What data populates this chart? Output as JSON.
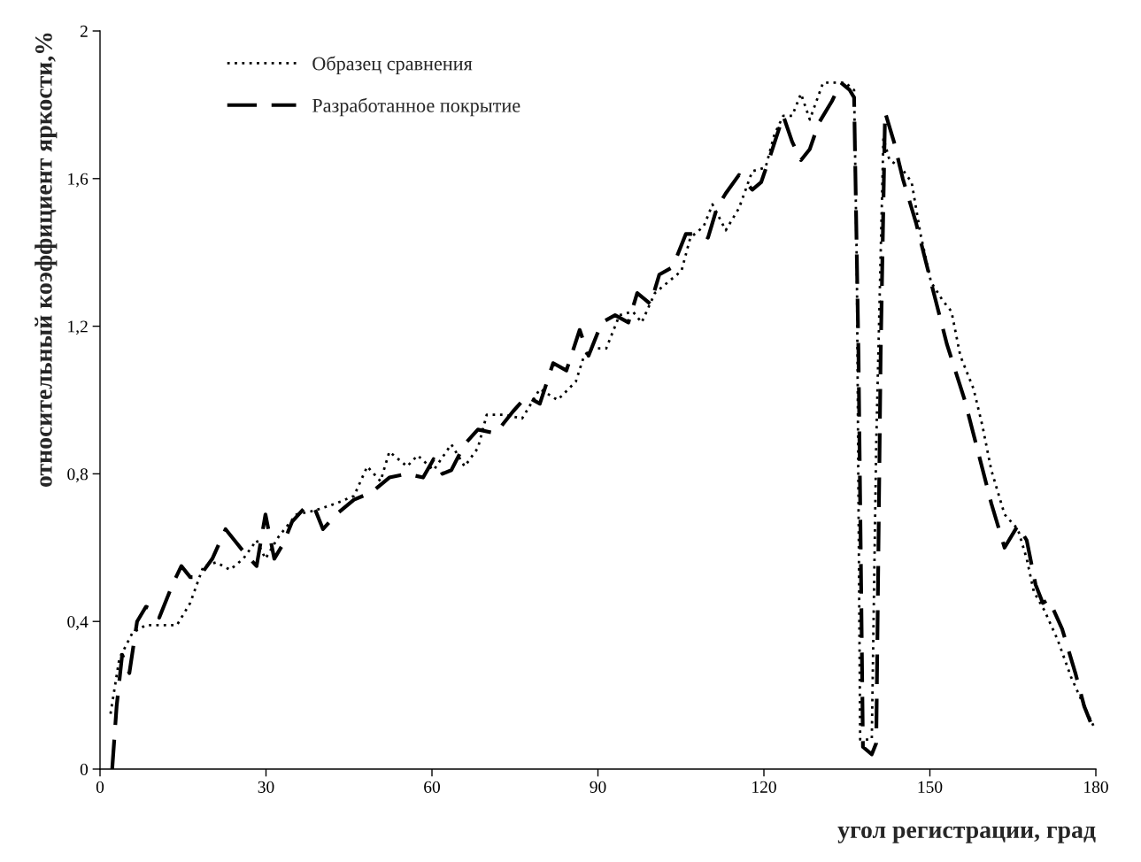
{
  "chart_data": {
    "type": "line",
    "xlabel": "угол регистрации, град",
    "ylabel": "относительный коэффициент яркости,%",
    "xlim": [
      0,
      180
    ],
    "xticks": [
      0,
      30,
      60,
      90,
      120,
      150,
      180
    ],
    "ylim": [
      0,
      2
    ],
    "yticks": [
      0,
      {
        "value": 0.4,
        "label": "0,4"
      },
      {
        "value": 0.8,
        "label": "0,8"
      },
      {
        "value": 1.2,
        "label": "1,2"
      },
      {
        "value": 1.6,
        "label": "1,6"
      },
      2
    ],
    "grid": false,
    "legend": "top left",
    "marker": "none",
    "series": [
      {
        "name": "Образец сравнения",
        "color": "#000000",
        "line_style": "dotted",
        "x": [
          1.9,
          3.5,
          5.9,
          8.3,
          10.7,
          13.9,
          16.3,
          18.7,
          21,
          23.5,
          25.9,
          28.3,
          29.9,
          32.3,
          35.5,
          38.7,
          42.7,
          45.9,
          48.3,
          50.7,
          52.3,
          55.5,
          57.4,
          60.3,
          63.5,
          65.9,
          68.3,
          69.9,
          73.1,
          76.3,
          79.5,
          82.7,
          86,
          87.5,
          89,
          91.5,
          93.9,
          96.3,
          97.9,
          100.3,
          102.7,
          105.1,
          106.7,
          109.1,
          110.7,
          113.1,
          115.5,
          117.9,
          120.3,
          121.9,
          123.5,
          125.1,
          126.7,
          128.3,
          130.7,
          133.1,
          134.7,
          136.3,
          136.8,
          137.4,
          139.5,
          140.3,
          141.6,
          142.7,
          144.8,
          146.7,
          148.3,
          150.2,
          152.3,
          153.9,
          155.5,
          157.9,
          159.5,
          161.1,
          163.5,
          165.9,
          167.5,
          168.8,
          170.7,
          173.1,
          175.5,
          177.9,
          179.8
        ],
        "values": [
          0.15,
          0.3,
          0.37,
          0.39,
          0.39,
          0.39,
          0.45,
          0.55,
          0.56,
          0.54,
          0.57,
          0.62,
          0.57,
          0.63,
          0.69,
          0.7,
          0.72,
          0.74,
          0.82,
          0.78,
          0.86,
          0.82,
          0.85,
          0.81,
          0.88,
          0.82,
          0.87,
          0.96,
          0.96,
          0.95,
          1.03,
          1.0,
          1.05,
          1.12,
          1.14,
          1.14,
          1.23,
          1.24,
          1.21,
          1.29,
          1.32,
          1.35,
          1.44,
          1.47,
          1.53,
          1.46,
          1.52,
          1.62,
          1.63,
          1.72,
          1.77,
          1.77,
          1.83,
          1.76,
          1.86,
          1.86,
          1.86,
          1.84,
          1.36,
          0.08,
          0.08,
          0.88,
          1.71,
          1.65,
          1.63,
          1.59,
          1.45,
          1.32,
          1.27,
          1.24,
          1.12,
          1.03,
          0.93,
          0.81,
          0.69,
          0.65,
          0.57,
          0.48,
          0.43,
          0.35,
          0.25,
          0.17,
          0.11
        ]
      },
      {
        "name": "Разработанное покрытие",
        "color": "#000000",
        "line_style": "dashed",
        "x": [
          2.2,
          3,
          4,
          5.3,
          6.7,
          8.3,
          9.9,
          10.7,
          13.1,
          14.7,
          16.3,
          17.9,
          20.3,
          22.7,
          24.3,
          25.9,
          28.3,
          29.9,
          31.5,
          33.1,
          34.7,
          37.1,
          38.7,
          40.3,
          42.7,
          45.9,
          49.1,
          52.3,
          55.5,
          58.4,
          60.3,
          61.9,
          63.5,
          65.9,
          68.3,
          71.5,
          74.7,
          77.1,
          79.5,
          81.9,
          84.3,
          86.7,
          88.3,
          90.7,
          93.1,
          95.5,
          97.1,
          99.5,
          101.1,
          103.5,
          105.9,
          108.3,
          109.9,
          111.5,
          113.1,
          115.5,
          117.9,
          119.5,
          121.1,
          123.5,
          125.1,
          126.7,
          128.3,
          129.9,
          132.3,
          133.9,
          135.5,
          136.3,
          137.1,
          137.9,
          139.5,
          140.3,
          141.1,
          141.9,
          143.5,
          145.1,
          147.5,
          150.7,
          153.1,
          156.3,
          158.7,
          161.1,
          163.5,
          165.9,
          167.5,
          169.1,
          170.4,
          171.5,
          173.9,
          176.3,
          177.9,
          179.5
        ],
        "values": [
          0.0,
          0.17,
          0.31,
          0.26,
          0.4,
          0.44,
          0.43,
          0.41,
          0.5,
          0.55,
          0.52,
          0.52,
          0.57,
          0.65,
          0.62,
          0.59,
          0.55,
          0.69,
          0.57,
          0.61,
          0.67,
          0.71,
          0.71,
          0.65,
          0.69,
          0.73,
          0.75,
          0.79,
          0.8,
          0.79,
          0.84,
          0.8,
          0.81,
          0.88,
          0.92,
          0.91,
          0.97,
          1.01,
          0.99,
          1.1,
          1.08,
          1.19,
          1.12,
          1.21,
          1.23,
          1.21,
          1.29,
          1.26,
          1.34,
          1.36,
          1.45,
          1.45,
          1.44,
          1.52,
          1.56,
          1.61,
          1.57,
          1.59,
          1.66,
          1.77,
          1.7,
          1.65,
          1.68,
          1.75,
          1.81,
          1.86,
          1.84,
          1.82,
          1.12,
          0.06,
          0.04,
          0.07,
          1.12,
          1.78,
          1.7,
          1.6,
          1.48,
          1.29,
          1.15,
          1.0,
          0.86,
          0.72,
          0.6,
          0.66,
          0.62,
          0.5,
          0.45,
          0.46,
          0.38,
          0.26,
          0.17,
          0.11
        ]
      }
    ]
  }
}
